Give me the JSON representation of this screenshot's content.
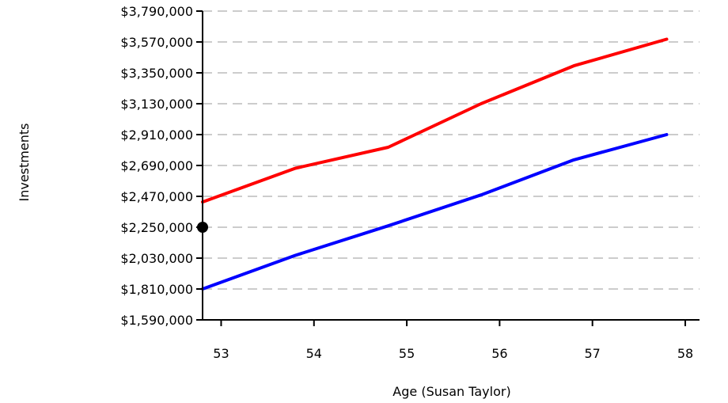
{
  "chart_data": {
    "type": "line",
    "title": "",
    "xlabel": "Age (Susan Taylor)",
    "ylabel": "Investments",
    "x_ticks": [
      "53",
      "54",
      "55",
      "56",
      "57",
      "58"
    ],
    "y_ticks": [
      "$1,590,000",
      "$1,810,000",
      "$2,030,000",
      "$2,250,000",
      "$2,470,000",
      "$2,690,000",
      "$2,910,000",
      "$3,130,000",
      "$3,350,000",
      "$3,570,000",
      "$3,790,000"
    ],
    "xlim": [
      52.8,
      58.0
    ],
    "ylim": [
      1590000,
      3790000
    ],
    "grid": true,
    "x": [
      52.8,
      53.8,
      54.8,
      55.8,
      56.8,
      57.8
    ],
    "series": [
      {
        "color": "#ff0000",
        "values": [
          2430000,
          2670000,
          2820000,
          3130000,
          3400000,
          3590000
        ]
      },
      {
        "color": "#0000ff",
        "values": [
          1810000,
          2050000,
          2260000,
          2480000,
          2730000,
          2910000
        ]
      }
    ],
    "marker": {
      "x": 52.8,
      "y": 2250000,
      "color": "#000000"
    }
  }
}
